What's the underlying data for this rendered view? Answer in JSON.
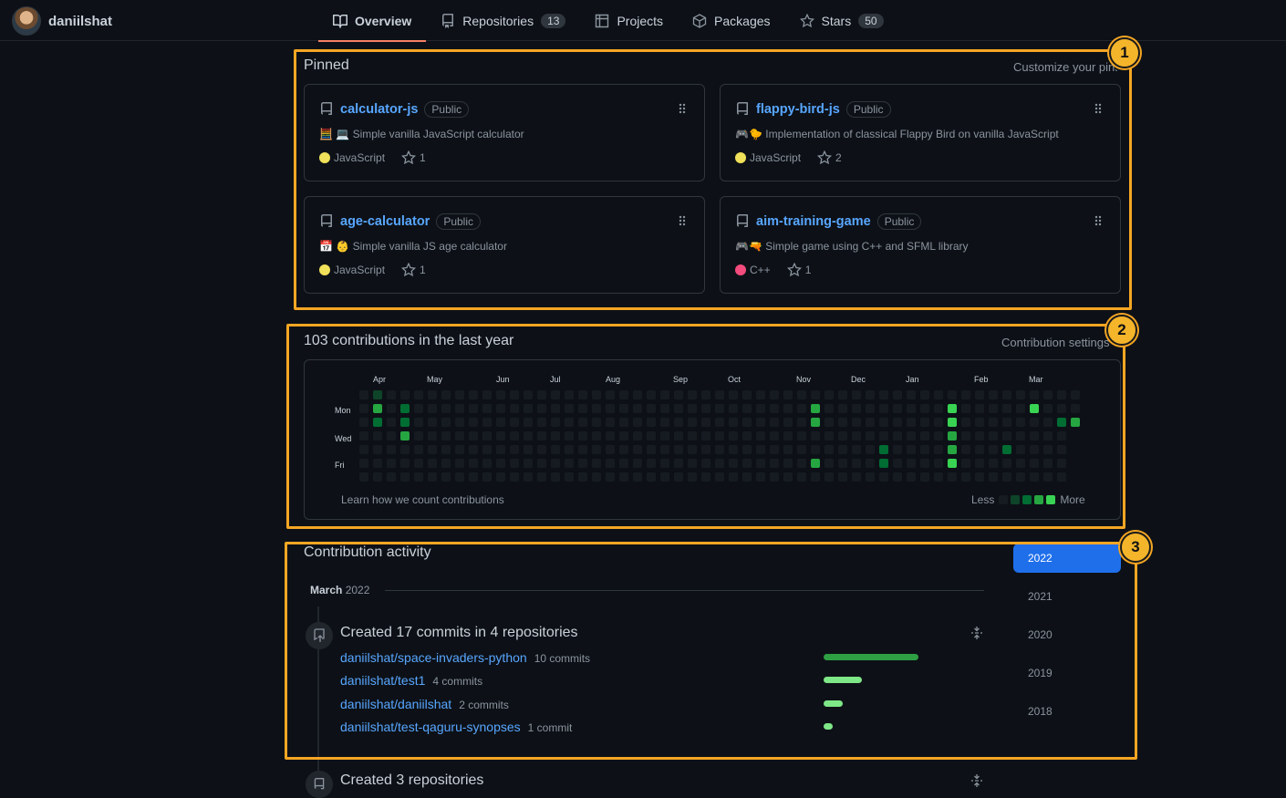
{
  "user": {
    "name": "daniilshat"
  },
  "nav": {
    "tabs": [
      {
        "label": "Overview",
        "active": true
      },
      {
        "label": "Repositories",
        "count": "13"
      },
      {
        "label": "Projects"
      },
      {
        "label": "Packages"
      },
      {
        "label": "Stars",
        "count": "50"
      }
    ]
  },
  "annotations": [
    "1",
    "2",
    "3"
  ],
  "pinned": {
    "title": "Pinned",
    "customize": "Customize your pins",
    "cards": [
      {
        "name": "calculator-js",
        "visibility": "Public",
        "emoji": "🧮 💻",
        "description": "Simple vanilla JavaScript calculator",
        "language": "JavaScript",
        "language_color": "#f1e05a",
        "stars": "1"
      },
      {
        "name": "flappy-bird-js",
        "visibility": "Public",
        "emoji": "🎮🐤",
        "description": "Implementation of classical Flappy Bird on vanilla JavaScript",
        "language": "JavaScript",
        "language_color": "#f1e05a",
        "stars": "2"
      },
      {
        "name": "age-calculator",
        "visibility": "Public",
        "emoji": "📅 👶",
        "description": "Simple vanilla JS age calculator",
        "language": "JavaScript",
        "language_color": "#f1e05a",
        "stars": "1"
      },
      {
        "name": "aim-training-game",
        "visibility": "Public",
        "emoji": "🎮🔫",
        "description": "Simple game using C++ and SFML library",
        "language": "C++",
        "language_color": "#f34b7d",
        "stars": "1"
      }
    ]
  },
  "contributions": {
    "title": "103 contributions in the last year",
    "settings": "Contribution settings",
    "months": [
      "Apr",
      "May",
      "Jun",
      "Jul",
      "Aug",
      "Sep",
      "Oct",
      "Nov",
      "Dec",
      "Jan",
      "Feb",
      "Mar"
    ],
    "day_labels": [
      "Mon",
      "Wed",
      "Fri"
    ],
    "learn": "Learn how we count contributions",
    "legend_less": "Less",
    "legend_more": "More",
    "level_colors": [
      "#161b22",
      "#0e4429",
      "#006d32",
      "#26a641",
      "#39d353"
    ]
  },
  "activity": {
    "title": "Contribution activity",
    "years": [
      "2022",
      "2021",
      "2020",
      "2019",
      "2018"
    ],
    "month_label": "March",
    "month_year": "2022",
    "commits_title": "Created 17 commits in 4 repositories",
    "repos": [
      {
        "name": "daniilshat/space-invaders-python",
        "count": "10 commits",
        "commits": 10
      },
      {
        "name": "daniilshat/test1",
        "count": "4 commits",
        "commits": 4
      },
      {
        "name": "daniilshat/daniilshat",
        "count": "2 commits",
        "commits": 2
      },
      {
        "name": "daniilshat/test-qaguru-synopses",
        "count": "1 commit",
        "commits": 1
      }
    ],
    "repos_title": "Created 3 repositories"
  }
}
